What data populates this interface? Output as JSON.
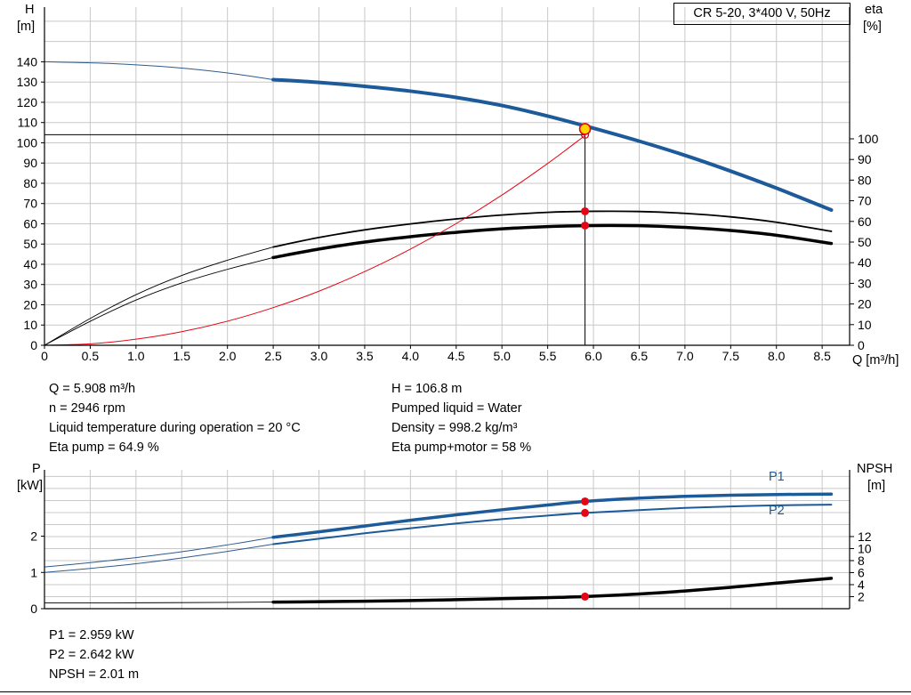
{
  "title_box": "CR 5-20, 3*400 V, 50Hz",
  "labels": {
    "h": "H",
    "h_unit": "[m]",
    "eta": "eta",
    "eta_unit": "[%]",
    "p": "P",
    "p_unit": "[kW]",
    "npsh": "NPSH",
    "npsh_unit": "[m]",
    "q_axis": "Q [m³/h]",
    "p1": "P1",
    "p2": "P2"
  },
  "colors": {
    "blue": "#1c5a99",
    "red": "#e30613",
    "yellow": "#ffd500",
    "grid": "#c8c8c8",
    "black": "#000000"
  },
  "info_block": {
    "q": "Q = 5.908 m³/h",
    "n": "n = 2946 rpm",
    "temp": "Liquid temperature during operation = 20 °C",
    "eta_pump": "Eta pump = 64.9 %",
    "h": "H = 106.8 m",
    "liquid": "Pumped liquid = Water",
    "density": "Density = 998.2 kg/m³",
    "eta_pm": "Eta pump+motor = 58 %"
  },
  "result_block": {
    "p1": "P1 = 2.959 kW",
    "p2": "P2 = 2.642 kW",
    "npsh": "NPSH = 2.01 m"
  },
  "chart_data": [
    {
      "type": "line",
      "title": "CR 5-20, 3*400 V, 50Hz",
      "xlabel": "Q [m³/h]",
      "ylabel_left": "H [m]",
      "ylabel_right": "eta [%]",
      "xlim": [
        0,
        8.8
      ],
      "ylim_left": [
        0,
        167
      ],
      "ylim_right": [
        0,
        163.8
      ],
      "x_ticks": [
        "0",
        "0.5",
        "1.0",
        "1.5",
        "2.0",
        "2.5",
        "3.0",
        "3.5",
        "4.0",
        "4.5",
        "5.0",
        "5.5",
        "6.0",
        "6.5",
        "7.0",
        "7.5",
        "8.0",
        "8.5"
      ],
      "y_ticks_left": [
        0,
        10,
        20,
        30,
        40,
        50,
        60,
        70,
        80,
        90,
        100,
        110,
        120,
        130,
        140
      ],
      "y_ticks_right": [
        0,
        10,
        20,
        30,
        40,
        50,
        60,
        70,
        80,
        90,
        100
      ],
      "y_grid": {
        "axis": "left",
        "values": [
          10,
          20,
          30,
          40,
          50,
          60,
          70,
          80,
          90,
          100,
          110,
          120,
          130,
          140,
          150,
          160
        ]
      },
      "duty_point": {
        "q": 5.908,
        "h": 106.8,
        "eta_pump": 64.9,
        "eta_pump_motor": 58
      },
      "series": [
        {
          "name": "head-extension",
          "axis": "left",
          "color": "#2d5a8c",
          "width": 1,
          "points": [
            [
              0,
              140
            ],
            [
              0.7,
              139.2
            ],
            [
              1.4,
              137.3
            ],
            [
              2,
              134.5
            ],
            [
              2.5,
              131.2
            ]
          ]
        },
        {
          "name": "head-curve",
          "axis": "left",
          "color": "#1c5a99",
          "width": 4,
          "points": [
            [
              2.5,
              131.2
            ],
            [
              3,
              129.8
            ],
            [
              3.5,
              127.9
            ],
            [
              4,
              125.5
            ],
            [
              4.5,
              122.4
            ],
            [
              5,
              118.4
            ],
            [
              5.5,
              113.2
            ],
            [
              6,
              107.2
            ],
            [
              6.5,
              100.8
            ],
            [
              7,
              93.8
            ],
            [
              7.5,
              86.0
            ],
            [
              8,
              77.6
            ],
            [
              8.6,
              66.8
            ]
          ]
        },
        {
          "name": "eta-pump-extension",
          "axis": "right",
          "color": "#000000",
          "width": 0.9,
          "points": [
            [
              0,
              0
            ],
            [
              0.5,
              13
            ],
            [
              1,
              24.5
            ],
            [
              1.5,
              33.8
            ],
            [
              2,
              41.2
            ],
            [
              2.5,
              47.6
            ]
          ]
        },
        {
          "name": "eta-pump-curve",
          "axis": "right",
          "color": "#000000",
          "width": 1.8,
          "points": [
            [
              2.5,
              47.6
            ],
            [
              3,
              52.2
            ],
            [
              3.5,
              55.9
            ],
            [
              4,
              58.8
            ],
            [
              4.5,
              61.2
            ],
            [
              5,
              63.1
            ],
            [
              5.5,
              64.4
            ],
            [
              6,
              64.9
            ],
            [
              6.5,
              64.8
            ],
            [
              7,
              63.9
            ],
            [
              7.5,
              62.2
            ],
            [
              8,
              59.6
            ],
            [
              8.6,
              55.2
            ]
          ]
        },
        {
          "name": "eta-pump-motor-extension",
          "axis": "right",
          "color": "#000000",
          "width": 0.9,
          "points": [
            [
              0,
              0
            ],
            [
              0.5,
              11.6
            ],
            [
              1,
              21.9
            ],
            [
              1.5,
              30.2
            ],
            [
              2,
              36.8
            ],
            [
              2.5,
              42.5
            ]
          ]
        },
        {
          "name": "eta-pump-motor-curve",
          "axis": "right",
          "color": "#000000",
          "width": 3.5,
          "points": [
            [
              2.5,
              42.5
            ],
            [
              3,
              46.6
            ],
            [
              3.5,
              50.0
            ],
            [
              4,
              52.6
            ],
            [
              4.5,
              54.7
            ],
            [
              5,
              56.4
            ],
            [
              5.5,
              57.5
            ],
            [
              6,
              58.0
            ],
            [
              6.5,
              57.9
            ],
            [
              7,
              57.1
            ],
            [
              7.5,
              55.6
            ],
            [
              8,
              53.3
            ],
            [
              8.6,
              49.3
            ]
          ]
        },
        {
          "name": "affinity-parabola",
          "axis": "left",
          "color": "#e30613",
          "width": 1,
          "points": [
            [
              0,
              0
            ],
            [
              0.5,
              0.7
            ],
            [
              1,
              3.0
            ],
            [
              1.5,
              6.7
            ],
            [
              2,
              11.9
            ],
            [
              2.5,
              18.6
            ],
            [
              3,
              26.7
            ],
            [
              3.5,
              36.4
            ],
            [
              4,
              47.5
            ],
            [
              4.5,
              60.1
            ],
            [
              5,
              74.2
            ],
            [
              5.5,
              89.8
            ],
            [
              5.908,
              103.6
            ]
          ]
        }
      ],
      "ref_lines": [
        {
          "axis": "left",
          "color": "#000000",
          "width": 1,
          "points": [
            [
              0,
              104
            ],
            [
              5.908,
              104
            ]
          ]
        },
        {
          "axis": "left",
          "color": "#000000",
          "width": 1,
          "points": [
            [
              5.908,
              106.8
            ],
            [
              5.908,
              0
            ]
          ]
        }
      ],
      "markers": [
        {
          "x": 5.908,
          "y": 104,
          "axis": "left",
          "r": 4,
          "fill": "none",
          "stroke": "#e30613",
          "sw": 1.3
        },
        {
          "x": 5.908,
          "y": 106.8,
          "axis": "left",
          "r": 6,
          "fill": "#ffd500",
          "stroke": "#e30613",
          "sw": 1.6
        },
        {
          "x": 5.908,
          "y": 64.9,
          "axis": "right",
          "r": 4.5,
          "fill": "#e30613",
          "stroke": "none",
          "sw": 0
        },
        {
          "x": 5.908,
          "y": 58,
          "axis": "right",
          "r": 4.5,
          "fill": "#e30613",
          "stroke": "none",
          "sw": 0
        }
      ]
    },
    {
      "type": "line",
      "xlabel": "",
      "ylabel_left": "P [kW]",
      "ylabel_right": "NPSH [m]",
      "xlim": [
        0,
        8.8
      ],
      "ylim_left": [
        0,
        3.83
      ],
      "ylim_right": [
        0,
        23.1
      ],
      "x_ticks": [
        "0",
        "0.5",
        "1.0",
        "1.5",
        "2.0",
        "2.5",
        "3.0",
        "3.5",
        "4.0",
        "4.5",
        "5.0",
        "5.5",
        "6.0",
        "6.5",
        "7.0",
        "7.5",
        "8.0",
        "8.5"
      ],
      "show_x_tick_labels": false,
      "y_ticks_left": [
        0,
        1,
        2
      ],
      "y_ticks_right": [
        2,
        4,
        6,
        8,
        10,
        12
      ],
      "y_grid": {
        "axis": "right",
        "values": [
          2,
          4,
          6,
          8,
          10,
          12,
          14,
          16,
          18,
          20,
          22
        ]
      },
      "duty_point": {
        "q": 5.908,
        "p1_kw": 2.959,
        "p2_kw": 2.642,
        "npsh_m": 2.01
      },
      "series": [
        {
          "name": "p1-extension",
          "axis": "left",
          "color": "#2d5a8c",
          "width": 1,
          "points": [
            [
              0,
              1.15
            ],
            [
              0.5,
              1.27
            ],
            [
              1,
              1.41
            ],
            [
              1.5,
              1.57
            ],
            [
              2,
              1.76
            ],
            [
              2.5,
              1.97
            ]
          ]
        },
        {
          "name": "p1-curve",
          "axis": "left",
          "color": "#1c5a99",
          "width": 3.5,
          "points": [
            [
              2.5,
              1.97
            ],
            [
              3,
              2.12
            ],
            [
              3.5,
              2.28
            ],
            [
              4,
              2.44
            ],
            [
              4.5,
              2.59
            ],
            [
              5,
              2.73
            ],
            [
              5.5,
              2.86
            ],
            [
              5.908,
              2.959
            ],
            [
              6.5,
              3.05
            ],
            [
              7,
              3.1
            ],
            [
              7.5,
              3.13
            ],
            [
              8,
              3.15
            ],
            [
              8.6,
              3.16
            ]
          ]
        },
        {
          "name": "p2-extension",
          "axis": "left",
          "color": "#2d5a8c",
          "width": 1,
          "points": [
            [
              0,
              1.0
            ],
            [
              0.5,
              1.11
            ],
            [
              1,
              1.24
            ],
            [
              1.5,
              1.4
            ],
            [
              2,
              1.58
            ],
            [
              2.5,
              1.78
            ]
          ]
        },
        {
          "name": "p2-curve",
          "axis": "left",
          "color": "#1c5a99",
          "width": 2,
          "points": [
            [
              2.5,
              1.78
            ],
            [
              3,
              1.93
            ],
            [
              3.5,
              2.08
            ],
            [
              4,
              2.22
            ],
            [
              4.5,
              2.35
            ],
            [
              5,
              2.47
            ],
            [
              5.5,
              2.57
            ],
            [
              5.908,
              2.642
            ],
            [
              6.5,
              2.72
            ],
            [
              7,
              2.78
            ],
            [
              7.5,
              2.82
            ],
            [
              8,
              2.85
            ],
            [
              8.6,
              2.87
            ]
          ]
        },
        {
          "name": "npsh-extension",
          "axis": "right",
          "color": "#000000",
          "width": 0.9,
          "points": [
            [
              0,
              0.95
            ],
            [
              1,
              0.98
            ],
            [
              2,
              1.05
            ],
            [
              2.5,
              1.1
            ]
          ]
        },
        {
          "name": "npsh-curve",
          "axis": "right",
          "color": "#000000",
          "width": 3.5,
          "points": [
            [
              2.5,
              1.1
            ],
            [
              3,
              1.16
            ],
            [
              3.5,
              1.24
            ],
            [
              4,
              1.36
            ],
            [
              4.5,
              1.5
            ],
            [
              5,
              1.66
            ],
            [
              5.5,
              1.84
            ],
            [
              5.908,
              2.01
            ],
            [
              6.5,
              2.45
            ],
            [
              7,
              2.95
            ],
            [
              7.5,
              3.55
            ],
            [
              8,
              4.25
            ],
            [
              8.6,
              5.05
            ]
          ]
        }
      ],
      "ref_lines": [],
      "markers": [
        {
          "x": 5.908,
          "y": 2.959,
          "axis": "left",
          "r": 4.5,
          "fill": "#e30613",
          "stroke": "none",
          "sw": 0
        },
        {
          "x": 5.908,
          "y": 2.642,
          "axis": "left",
          "r": 4.5,
          "fill": "#e30613",
          "stroke": "none",
          "sw": 0
        },
        {
          "x": 5.908,
          "y": 2.01,
          "axis": "right",
          "r": 4.5,
          "fill": "#e30613",
          "stroke": "none",
          "sw": 0
        }
      ]
    }
  ]
}
